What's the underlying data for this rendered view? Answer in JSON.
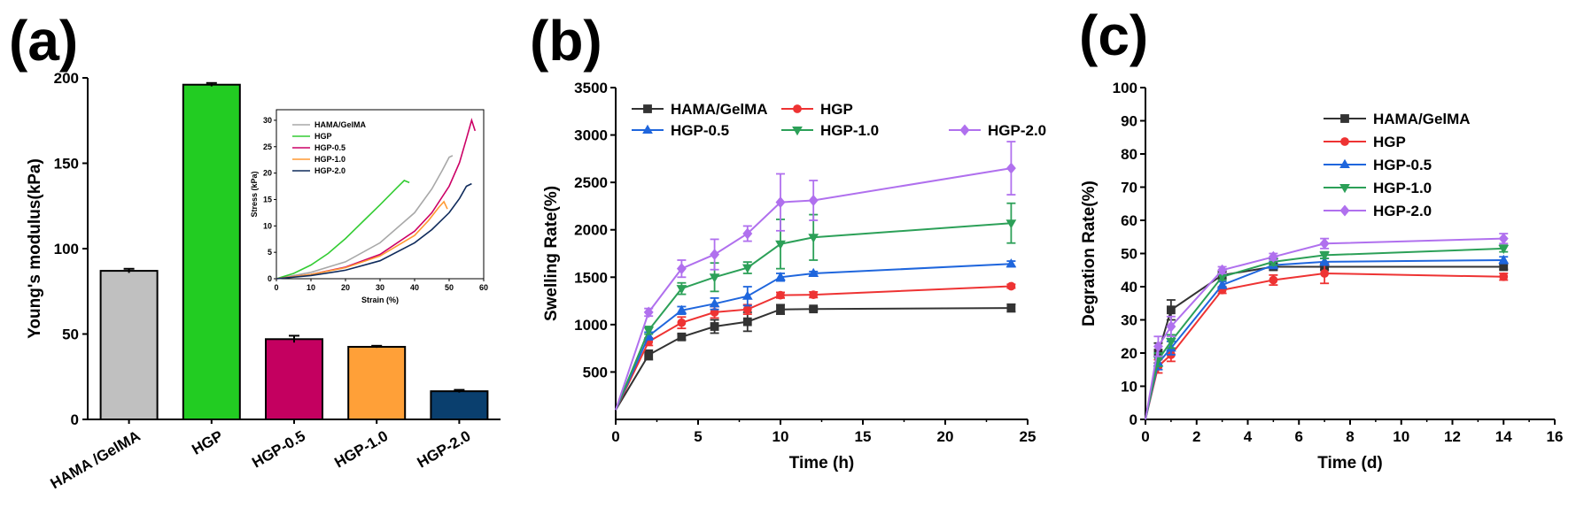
{
  "chart_data": [
    {
      "panel": "(a)",
      "type": "bar",
      "ylabel": "Young's modulus(kPa)",
      "ylim": [
        0,
        200
      ],
      "yticks": [
        "0",
        "50",
        "100",
        "150",
        "200"
      ],
      "categories": [
        "HAMA /GelMA",
        "HGP",
        "HGP-0.5",
        "HGP-1.0",
        "HGP-2.0"
      ],
      "values": [
        87,
        196,
        47,
        42.5,
        16.5
      ],
      "errors": [
        1.2,
        1.0,
        2.0,
        0.6,
        0.8
      ],
      "colors": [
        "#c0c0c0",
        "#22cc22",
        "#c40060",
        "#ffa038",
        "#0a3f6e"
      ],
      "inset": {
        "type": "line",
        "xlabel": "Strain (%)",
        "ylabel": "Stress (kPa)",
        "xlim": [
          0,
          60
        ],
        "ylim": [
          0,
          32
        ],
        "xticks": [
          "0",
          "10",
          "20",
          "30",
          "40",
          "50",
          "60"
        ],
        "yticks": [
          "0",
          "5",
          "10",
          "15",
          "20",
          "25",
          "30"
        ],
        "series": [
          {
            "name": "HAMA/GelMA",
            "color": "#a8a8a8",
            "x": [
              0,
              10,
              20,
              30,
              40,
              45,
              48,
              50,
              51
            ],
            "y": [
              0,
              1.2,
              3.2,
              6.8,
              12.5,
              17,
              20.5,
              23,
              23.3
            ]
          },
          {
            "name": "HGP",
            "color": "#33cc33",
            "x": [
              0,
              5,
              10,
              15,
              20,
              25,
              30,
              35,
              37,
              38.5
            ],
            "y": [
              0,
              1,
              2.6,
              4.8,
              7.6,
              10.8,
              14,
              17.3,
              18.6,
              18.2
            ]
          },
          {
            "name": "HGP-0.5",
            "color": "#cc0066",
            "x": [
              0,
              10,
              20,
              30,
              40,
              45,
              50,
              53,
              55,
              56.5,
              57.5
            ],
            "y": [
              0,
              0.8,
              2.2,
              4.6,
              9,
              12.5,
              17.5,
              22,
              26.5,
              30,
              28
            ]
          },
          {
            "name": "HGP-1.0",
            "color": "#ff9933",
            "x": [
              0,
              10,
              20,
              30,
              40,
              44,
              47,
              48.5,
              49.5
            ],
            "y": [
              0,
              0.8,
              2.1,
              4.3,
              8.2,
              11,
              13.5,
              14.6,
              13.2
            ]
          },
          {
            "name": "HGP-2.0",
            "color": "#0f2b5c",
            "x": [
              0,
              10,
              20,
              30,
              40,
              45,
              50,
              53,
              55,
              56.5
            ],
            "y": [
              0,
              0.6,
              1.6,
              3.4,
              6.8,
              9.3,
              12.5,
              15.2,
              17.5,
              18
            ]
          }
        ]
      }
    },
    {
      "panel": "(b)",
      "type": "line",
      "xlabel": "Time (h)",
      "ylabel": "Swelling Rate(%)",
      "xlim": [
        0,
        25
      ],
      "ylim": [
        0,
        3500
      ],
      "xticks": [
        "0",
        "5",
        "10",
        "15",
        "20",
        "25"
      ],
      "yticks": [
        "500",
        "1000",
        "1500",
        "2000",
        "2500",
        "3000",
        "3500"
      ],
      "x": [
        0,
        2,
        4,
        6,
        8,
        10,
        12,
        24
      ],
      "series": [
        {
          "name": "HAMA/GelMA",
          "color": "#333333",
          "marker": "square",
          "values": [
            100,
            680,
            870,
            980,
            1030,
            1160,
            1165,
            1175
          ],
          "errors": [
            0,
            50,
            30,
            70,
            100,
            50,
            20,
            40
          ]
        },
        {
          "name": "HGP",
          "color": "#ee3333",
          "marker": "circle",
          "values": [
            100,
            820,
            1020,
            1130,
            1160,
            1310,
            1315,
            1405
          ],
          "errors": [
            0,
            40,
            60,
            60,
            50,
            30,
            30,
            20
          ]
        },
        {
          "name": "HGP-0.5",
          "color": "#1f66dd",
          "marker": "triangle-up",
          "values": [
            100,
            880,
            1150,
            1220,
            1300,
            1500,
            1540,
            1640
          ],
          "errors": [
            0,
            40,
            40,
            60,
            100,
            40,
            20,
            30
          ]
        },
        {
          "name": "HGP-1.0",
          "color": "#2ca058",
          "marker": "triangle-down",
          "values": [
            100,
            940,
            1380,
            1500,
            1600,
            1850,
            1920,
            2070
          ],
          "errors": [
            0,
            40,
            60,
            150,
            60,
            260,
            240,
            210
          ]
        },
        {
          "name": "HGP-2.0",
          "color": "#b070ee",
          "marker": "diamond",
          "values": [
            100,
            1130,
            1590,
            1740,
            1960,
            2290,
            2310,
            2650
          ],
          "errors": [
            0,
            40,
            90,
            160,
            80,
            300,
            210,
            280
          ]
        }
      ]
    },
    {
      "panel": "(c)",
      "type": "line",
      "xlabel": "Time (d)",
      "ylabel": "Degration Rate(%)",
      "xlim": [
        0,
        16
      ],
      "ylim": [
        0,
        100
      ],
      "xticks": [
        "0",
        "2",
        "4",
        "6",
        "8",
        "10",
        "12",
        "14",
        "16"
      ],
      "yticks": [
        "0",
        "10",
        "20",
        "30",
        "40",
        "50",
        "60",
        "70",
        "80",
        "90",
        "100"
      ],
      "x": [
        0,
        0.5,
        1,
        3,
        5,
        7,
        14
      ],
      "series": [
        {
          "name": "HAMA/GelMA",
          "color": "#333333",
          "marker": "square",
          "values": [
            0,
            20,
            33,
            43.5,
            46,
            46,
            46
          ],
          "errors": [
            0,
            3,
            3,
            1,
            1,
            1,
            0.8
          ]
        },
        {
          "name": "HGP",
          "color": "#ee3333",
          "marker": "circle",
          "values": [
            0,
            16,
            19.5,
            39,
            42,
            44,
            43
          ],
          "errors": [
            0,
            2,
            2,
            1,
            1.5,
            3,
            1
          ]
        },
        {
          "name": "HGP-0.5",
          "color": "#1f66dd",
          "marker": "triangle-up",
          "values": [
            0,
            17,
            21.5,
            40.5,
            46.5,
            47.5,
            48
          ],
          "errors": [
            0,
            2,
            2,
            1,
            1,
            1,
            1
          ]
        },
        {
          "name": "HGP-1.0",
          "color": "#2ca058",
          "marker": "triangle-down",
          "values": [
            0,
            18,
            23.5,
            43,
            47.5,
            49.5,
            51.5
          ],
          "errors": [
            0,
            2,
            2,
            1,
            1,
            1,
            1
          ]
        },
        {
          "name": "HGP-2.0",
          "color": "#b070ee",
          "marker": "diamond",
          "values": [
            0,
            22,
            28,
            45,
            49,
            53,
            54.5
          ],
          "errors": [
            0,
            3,
            3,
            1,
            1,
            1.5,
            1.5
          ]
        }
      ]
    }
  ]
}
